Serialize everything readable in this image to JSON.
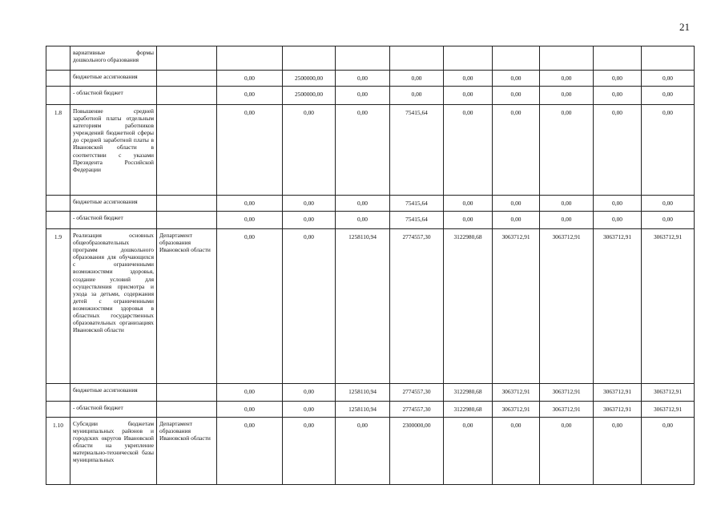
{
  "page_number": "21",
  "rows": [
    {
      "index": "",
      "desc": "вариативные формы дошкольного образования",
      "exec": "",
      "values": [
        "",
        "",
        "",
        "",
        "",
        "",
        "",
        "",
        ""
      ],
      "h": 30
    },
    {
      "index": "",
      "desc": "бюджетные ассигнования",
      "exec": "",
      "values": [
        "0,00",
        "2500000,00",
        "0,00",
        "0,00",
        "0,00",
        "0,00",
        "0,00",
        "0,00",
        "0,00"
      ],
      "h": 20
    },
    {
      "index": "",
      "desc": "- областной бюджет",
      "exec": "",
      "values": [
        "0,00",
        "2500000,00",
        "0,00",
        "0,00",
        "0,00",
        "0,00",
        "0,00",
        "0,00",
        "0,00"
      ],
      "h": 23
    },
    {
      "index": "1.8",
      "desc": "Повышение средней заработной платы отдельным категориям работников учреждений бюджетной сферы до средней заработной платы в Ивановской области в соответствии с указами Президента Российской Федерации",
      "exec": "",
      "values": [
        "0,00",
        "0,00",
        "0,00",
        "75415,64",
        "0,00",
        "0,00",
        "0,00",
        "0,00",
        "0,00"
      ],
      "h": 113
    },
    {
      "index": "",
      "desc": "бюджетные ассигнования",
      "exec": "",
      "values": [
        "0,00",
        "0,00",
        "0,00",
        "75415,64",
        "0,00",
        "0,00",
        "0,00",
        "0,00",
        "0,00"
      ],
      "h": 20
    },
    {
      "index": "",
      "desc": "- областной бюджет",
      "exec": "",
      "values": [
        "0,00",
        "0,00",
        "0,00",
        "75415,64",
        "0,00",
        "0,00",
        "0,00",
        "0,00",
        "0,00"
      ],
      "h": 22
    },
    {
      "index": "1.9",
      "desc": "Реализация основных общеобразовательных программ дошкольного образования для обучающихся с ограниченными возможностями здоровья, создание условий для осуществления присмотра и ухода за детьми, содержания детей с ограниченными возможностями здоровья в областных государственных образовательных организациях Ивановской области",
      "exec": "Департамент образования Ивановской области",
      "values": [
        "0,00",
        "0,00",
        "1258110,94",
        "2774557,30",
        "3122980,68",
        "3063712,91",
        "3063712,91",
        "3063712,91",
        "3063712,91"
      ],
      "h": 193
    },
    {
      "index": "",
      "desc": "бюджетные ассигнования",
      "exec": "",
      "values": [
        "0,00",
        "0,00",
        "1258110,94",
        "2774557,30",
        "3122980,68",
        "3063712,91",
        "3063712,91",
        "3063712,91",
        "3063712,91"
      ],
      "h": 22
    },
    {
      "index": "",
      "desc": "- областной бюджет",
      "exec": "",
      "values": [
        "0,00",
        "0,00",
        "1258110,94",
        "2774557,30",
        "3122980,68",
        "3063712,91",
        "3063712,91",
        "3063712,91",
        "3063712,91"
      ],
      "h": 20
    },
    {
      "index": "1.10",
      "desc": "Субсидии бюджетам муниципальных районов и городских округов Ивановской области на укрепление материально-технической базы муниципальных",
      "exec": "Департамент образования Ивановской области",
      "values": [
        "0,00",
        "0,00",
        "0,00",
        "2300000,00",
        "0,00",
        "0,00",
        "0,00",
        "0,00",
        "0,00"
      ],
      "h": 84
    }
  ]
}
